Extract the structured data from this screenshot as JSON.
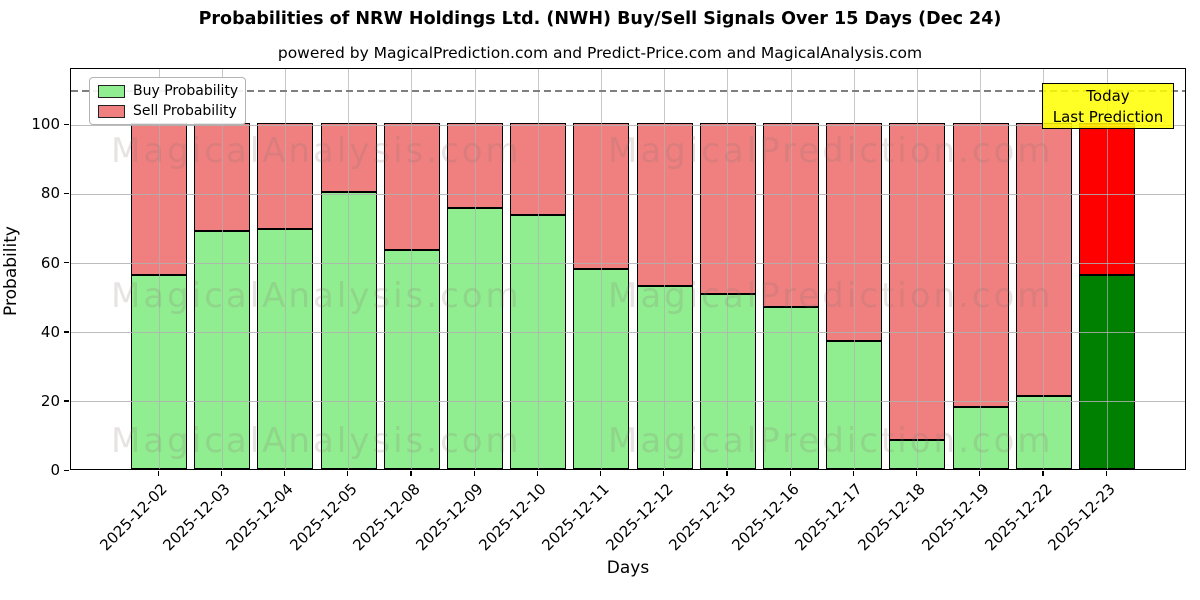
{
  "title": "Probabilities of NRW Holdings Ltd. (NWH) Buy/Sell Signals Over 15 Days (Dec 24)",
  "subtitle": "powered by MagicalPrediction.com and Predict-Price.com and MagicalAnalysis.com",
  "legend": {
    "buy_label": "Buy Probability",
    "sell_label": "Sell Probability"
  },
  "annotation": {
    "line1": "Today",
    "line2": "Last Prediction"
  },
  "watermarks": {
    "left": "MagicalAnalysis.com",
    "right": "MagicalPrediction.com"
  },
  "colors": {
    "buy": "#90EE90",
    "sell": "#F08080",
    "last_buy": "#008000",
    "last_sell": "#FF0000",
    "annotation_bg": "#FFFF00",
    "grid": "#b0b0b0",
    "dashed_line": "#7f7f7f",
    "bar_edge": "#000000"
  },
  "chart_data": {
    "type": "bar",
    "stacked": true,
    "title": "Probabilities of NRW Holdings Ltd. (NWH) Buy/Sell Signals Over 15 Days (Dec 24)",
    "xlabel": "Days",
    "ylabel": "Probability",
    "categories": [
      "2025-12-02",
      "2025-12-03",
      "2025-12-04",
      "2025-12-05",
      "2025-12-08",
      "2025-12-09",
      "2025-12-10",
      "2025-12-11",
      "2025-12-12",
      "2025-12-15",
      "2025-12-16",
      "2025-12-17",
      "2025-12-18",
      "2025-12-19",
      "2025-12-22",
      "2025-12-23"
    ],
    "series": [
      {
        "name": "Buy Probability",
        "color": "#90EE90",
        "values": [
          56,
          69,
          69.5,
          80,
          63.5,
          75.5,
          73.5,
          58,
          53,
          50.5,
          47,
          37,
          8.5,
          18,
          21,
          56
        ]
      },
      {
        "name": "Sell Probability",
        "color": "#F08080",
        "values": [
          44,
          31,
          30.5,
          20,
          36.5,
          24.5,
          26.5,
          42,
          47,
          49.5,
          53,
          63,
          91.5,
          82,
          79,
          44
        ]
      }
    ],
    "highlight_last_bar": {
      "buy_color": "#008000",
      "sell_color": "#FF0000",
      "label": "Today Last Prediction"
    },
    "yticks": [
      0,
      20,
      40,
      60,
      80,
      100
    ],
    "ylim": [
      0,
      116.3
    ],
    "dashed_hline_y": 110,
    "grid": true,
    "legend_position": "upper left"
  }
}
